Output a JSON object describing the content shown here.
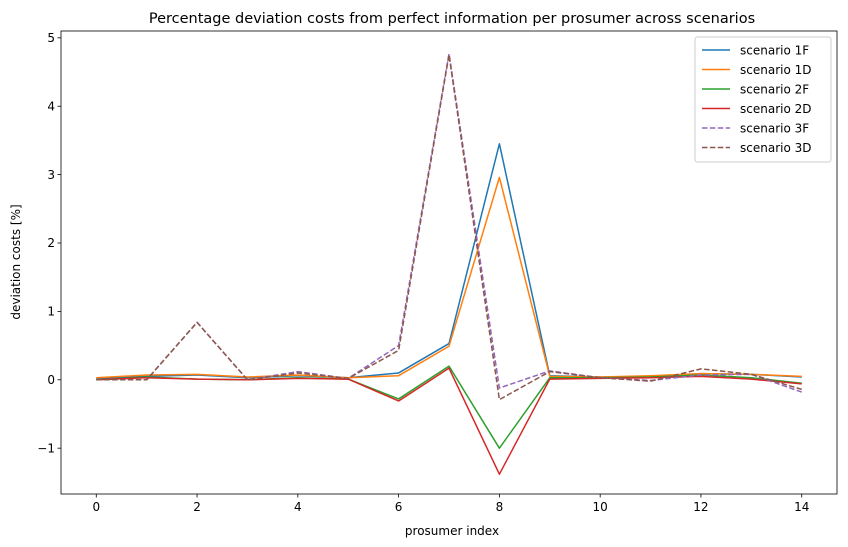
{
  "chart_data": {
    "type": "line",
    "title": "Percentage deviation costs from perfect information per prosumer across scenarios",
    "xlabel": "prosumer index",
    "ylabel": "deviation costs [%]",
    "xlim": [
      -0.7,
      14.7
    ],
    "ylim": [
      -1.67,
      5.1
    ],
    "xticks": [
      0,
      2,
      4,
      6,
      8,
      10,
      12,
      14
    ],
    "xtick_labels": [
      "0",
      "2",
      "4",
      "6",
      "8",
      "10",
      "12",
      "14"
    ],
    "yticks": [
      -1,
      0,
      1,
      2,
      3,
      4,
      5
    ],
    "ytick_labels": [
      "−1",
      "0",
      "1",
      "2",
      "3",
      "4",
      "5"
    ],
    "grid": false,
    "legend_position": "top-right",
    "x": [
      0,
      1,
      2,
      3,
      4,
      5,
      6,
      7,
      8,
      9,
      10,
      11,
      12,
      13,
      14
    ],
    "series": [
      {
        "name": "scenario 1F",
        "color": "#1f77b4",
        "dash": "solid",
        "values": [
          0.02,
          0.05,
          0.07,
          0.03,
          0.06,
          0.03,
          0.1,
          0.53,
          3.45,
          0.06,
          0.04,
          0.05,
          0.09,
          0.08,
          0.04
        ]
      },
      {
        "name": "scenario 1D",
        "color": "#ff7f0e",
        "dash": "solid",
        "values": [
          0.03,
          0.07,
          0.08,
          0.04,
          0.07,
          0.03,
          0.06,
          0.49,
          2.96,
          0.05,
          0.04,
          0.06,
          0.09,
          0.08,
          0.05
        ]
      },
      {
        "name": "scenario 2F",
        "color": "#2ca02c",
        "dash": "solid",
        "values": [
          0.0,
          0.04,
          0.01,
          0.0,
          0.03,
          0.01,
          -0.28,
          0.2,
          -1.0,
          0.03,
          0.03,
          0.04,
          0.07,
          0.03,
          -0.05
        ]
      },
      {
        "name": "scenario 2D",
        "color": "#d62728",
        "dash": "solid",
        "values": [
          0.0,
          0.03,
          0.01,
          0.0,
          0.02,
          0.01,
          -0.31,
          0.17,
          -1.38,
          0.01,
          0.02,
          0.03,
          0.05,
          0.01,
          -0.06
        ]
      },
      {
        "name": "scenario 3F",
        "color": "#9467bd",
        "dash": "dashed",
        "values": [
          0.0,
          0.0,
          0.84,
          0.0,
          0.12,
          0.02,
          0.5,
          4.77,
          -0.12,
          0.13,
          0.03,
          -0.01,
          0.07,
          0.08,
          -0.18
        ]
      },
      {
        "name": "scenario 3D",
        "color": "#8c564b",
        "dash": "dashed",
        "values": [
          0.0,
          0.0,
          0.84,
          0.0,
          0.1,
          0.02,
          0.43,
          4.75,
          -0.29,
          0.12,
          0.03,
          -0.02,
          0.16,
          0.08,
          -0.14
        ]
      }
    ]
  }
}
